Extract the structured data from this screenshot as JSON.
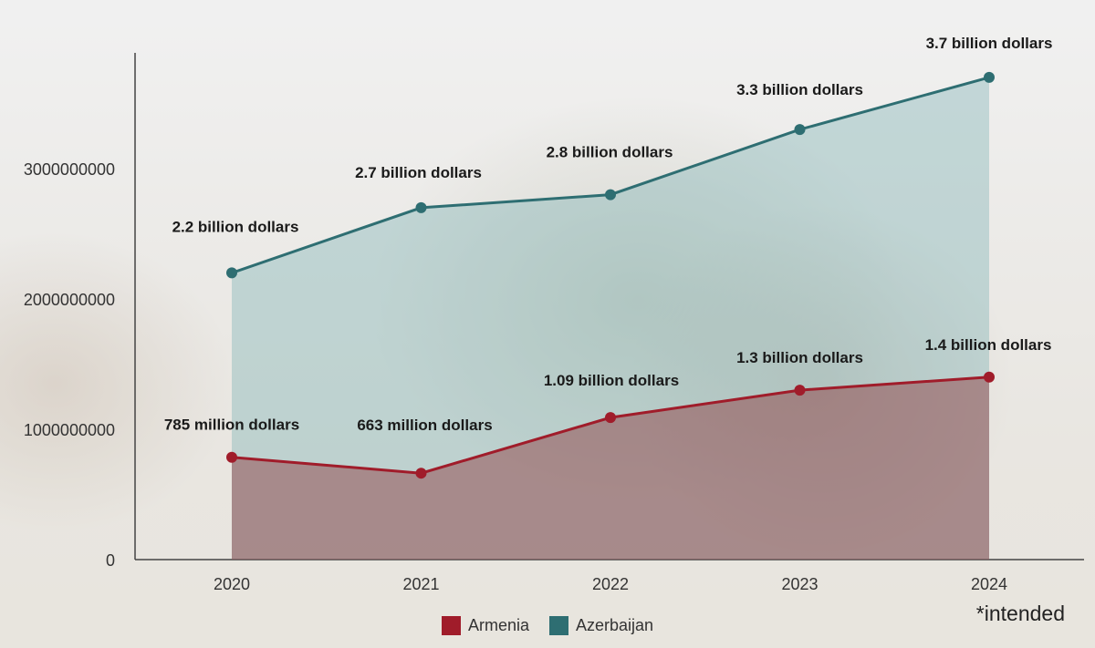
{
  "chart_data": {
    "type": "area",
    "categories": [
      "2020",
      "2021",
      "2022",
      "2023",
      "2024"
    ],
    "series": [
      {
        "name": "Armenia",
        "color": "#a01c2a",
        "values": [
          785000000,
          663000000,
          1090000000,
          1300000000,
          1400000000
        ],
        "labels": [
          "785 million dollars",
          "663 million dollars",
          "1.09 billion dollars",
          "1.3 billion dollars",
          "1.4 billion dollars"
        ]
      },
      {
        "name": "Azerbaijan",
        "color": "#2e6e72",
        "values": [
          2200000000,
          2700000000,
          2800000000,
          3300000000,
          3700000000
        ],
        "labels": [
          "2.2 billion dollars",
          "2.7 billion dollars",
          "2.8 billion dollars",
          "3.3 billion dollars",
          "3.7 billion dollars"
        ]
      }
    ],
    "y_ticks": [
      "0",
      "1000000000",
      "2000000000",
      "3000000000"
    ],
    "ylim": [
      0,
      4000000000
    ],
    "legend_position": "bottom-center",
    "grid": false,
    "footnote": "*intended"
  }
}
